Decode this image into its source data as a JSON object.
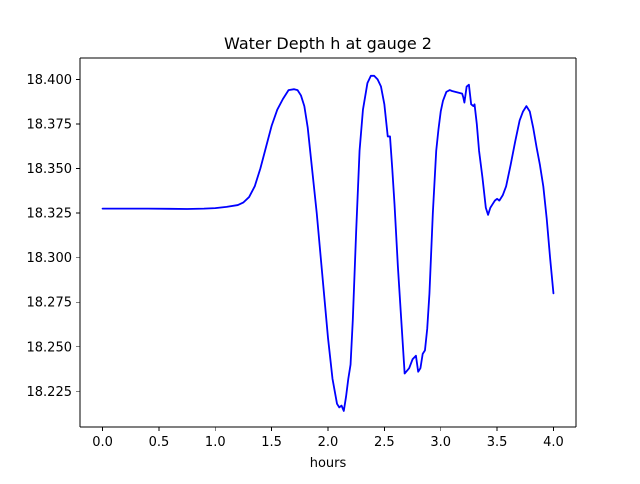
{
  "chart_data": {
    "type": "line",
    "title": "Water Depth h at gauge 2",
    "xlabel": "hours",
    "ylabel": "",
    "xlim": [
      -0.2,
      4.2
    ],
    "ylim": [
      18.205,
      18.412
    ],
    "xticks": [
      0.0,
      0.5,
      1.0,
      1.5,
      2.0,
      2.5,
      3.0,
      3.5,
      4.0
    ],
    "xtick_labels": [
      "0.0",
      "0.5",
      "1.0",
      "1.5",
      "2.0",
      "2.5",
      "3.0",
      "3.5",
      "4.0"
    ],
    "yticks": [
      18.225,
      18.25,
      18.275,
      18.3,
      18.325,
      18.35,
      18.375,
      18.4
    ],
    "ytick_labels": [
      "18.225",
      "18.250",
      "18.275",
      "18.300",
      "18.325",
      "18.350",
      "18.375",
      "18.400"
    ],
    "grid": false,
    "series": [
      {
        "color": "#0000ff",
        "x": [
          0.0,
          0.2,
          0.4,
          0.6,
          0.75,
          0.9,
          1.0,
          1.1,
          1.2,
          1.25,
          1.3,
          1.35,
          1.4,
          1.45,
          1.5,
          1.55,
          1.6,
          1.65,
          1.7,
          1.73,
          1.76,
          1.79,
          1.82,
          1.85,
          1.9,
          1.95,
          2.0,
          2.04,
          2.08,
          2.1,
          2.12,
          2.14,
          2.16,
          2.18,
          2.2,
          2.22,
          2.25,
          2.28,
          2.31,
          2.35,
          2.38,
          2.41,
          2.44,
          2.47,
          2.5,
          2.53,
          2.55,
          2.57,
          2.59,
          2.62,
          2.65,
          2.68,
          2.72,
          2.75,
          2.78,
          2.8,
          2.82,
          2.84,
          2.86,
          2.88,
          2.9,
          2.93,
          2.96,
          2.98,
          3.0,
          3.02,
          3.05,
          3.08,
          3.1,
          3.13,
          3.16,
          3.19,
          3.2,
          3.21,
          3.23,
          3.25,
          3.27,
          3.29,
          3.3,
          3.32,
          3.34,
          3.37,
          3.4,
          3.42,
          3.44,
          3.46,
          3.48,
          3.5,
          3.52,
          3.55,
          3.58,
          3.62,
          3.66,
          3.7,
          3.73,
          3.76,
          3.79,
          3.82,
          3.85,
          3.88,
          3.91,
          3.94,
          3.97,
          4.0
        ],
        "y": [
          18.3275,
          18.3275,
          18.3275,
          18.3274,
          18.3273,
          18.3275,
          18.3278,
          18.3285,
          18.3295,
          18.331,
          18.334,
          18.34,
          18.35,
          18.362,
          18.374,
          18.383,
          18.389,
          18.394,
          18.3945,
          18.394,
          18.391,
          18.385,
          18.373,
          18.355,
          18.325,
          18.29,
          18.255,
          18.232,
          18.218,
          18.216,
          18.217,
          18.214,
          18.222,
          18.232,
          18.24,
          18.265,
          18.315,
          18.36,
          18.383,
          18.398,
          18.402,
          18.402,
          18.4,
          18.396,
          18.386,
          18.368,
          18.368,
          18.35,
          18.33,
          18.295,
          18.265,
          18.235,
          18.238,
          18.243,
          18.245,
          18.236,
          18.238,
          18.246,
          18.248,
          18.26,
          18.28,
          18.325,
          18.36,
          18.372,
          18.382,
          18.388,
          18.393,
          18.394,
          18.3935,
          18.393,
          18.3925,
          18.392,
          18.39,
          18.387,
          18.396,
          18.397,
          18.386,
          18.385,
          18.386,
          18.375,
          18.36,
          18.345,
          18.328,
          18.324,
          18.328,
          18.33,
          18.332,
          18.333,
          18.332,
          18.335,
          18.34,
          18.352,
          18.365,
          18.377,
          18.382,
          18.385,
          18.382,
          18.373,
          18.362,
          18.352,
          18.34,
          18.322,
          18.3,
          18.28
        ]
      }
    ]
  }
}
